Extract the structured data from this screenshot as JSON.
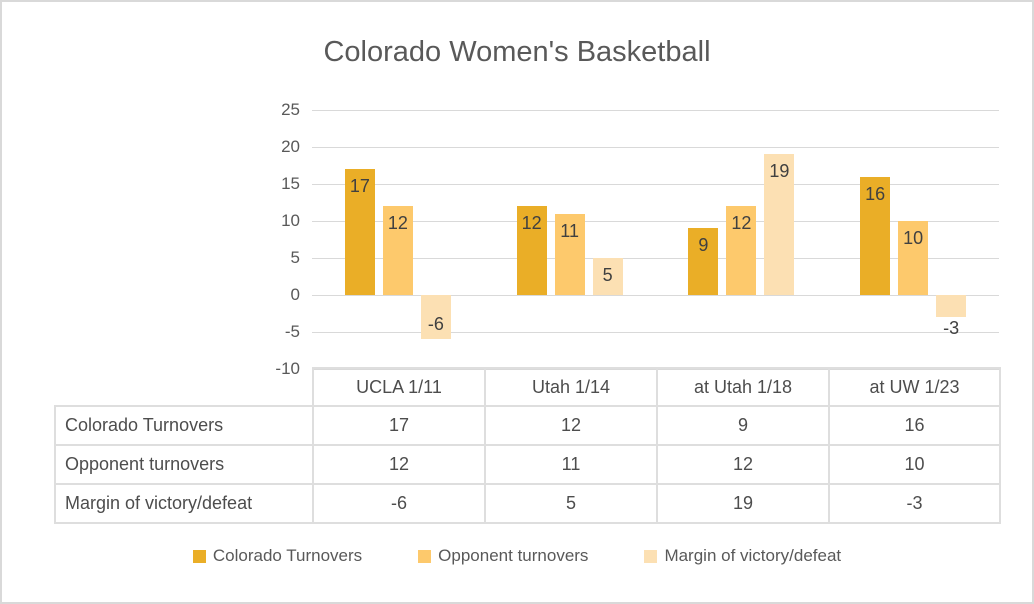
{
  "chart_data": {
    "type": "bar",
    "title": "Colorado Women's Basketball",
    "categories": [
      "UCLA 1/11",
      "Utah 1/14",
      "at Utah 1/18",
      "at UW 1/23"
    ],
    "series": [
      {
        "name": "Colorado Turnovers",
        "color": "#EAAE27",
        "values": [
          17,
          12,
          9,
          16
        ]
      },
      {
        "name": "Opponent turnovers",
        "color": "#FDC96C",
        "values": [
          12,
          11,
          12,
          10
        ]
      },
      {
        "name": "Margin of victory/defeat",
        "color": "#FCE0B3",
        "values": [
          -6,
          5,
          19,
          -3
        ]
      }
    ],
    "ylim": [
      -10,
      25
    ],
    "y_ticks": [
      25,
      20,
      15,
      10,
      5,
      0,
      -5,
      -10
    ],
    "grid": true,
    "data_labels": "inside-end",
    "legend_position": "bottom",
    "colors": {
      "axis_text": "#595959",
      "data_label_text": "#404040",
      "gridline": "#D9D9D9",
      "title_text": "#595959",
      "table_border": "#DEDEDE"
    }
  },
  "table": {
    "column_headers": [
      "UCLA 1/11",
      "Utah 1/14",
      "at Utah 1/18",
      "at UW 1/23"
    ],
    "rows": [
      {
        "label": "Colorado Turnovers",
        "values": [
          "17",
          "12",
          "9",
          "16"
        ]
      },
      {
        "label": "Opponent turnovers",
        "values": [
          "12",
          "11",
          "12",
          "10"
        ]
      },
      {
        "label": "Margin of victory/defeat",
        "values": [
          "-6",
          "5",
          "19",
          "-3"
        ]
      }
    ]
  },
  "legend": {
    "items": [
      {
        "label": "Colorado Turnovers",
        "color": "#EAAE27"
      },
      {
        "label": "Opponent turnovers",
        "color": "#FDC96C"
      },
      {
        "label": "Margin of victory/defeat",
        "color": "#FCE0B3"
      }
    ]
  }
}
